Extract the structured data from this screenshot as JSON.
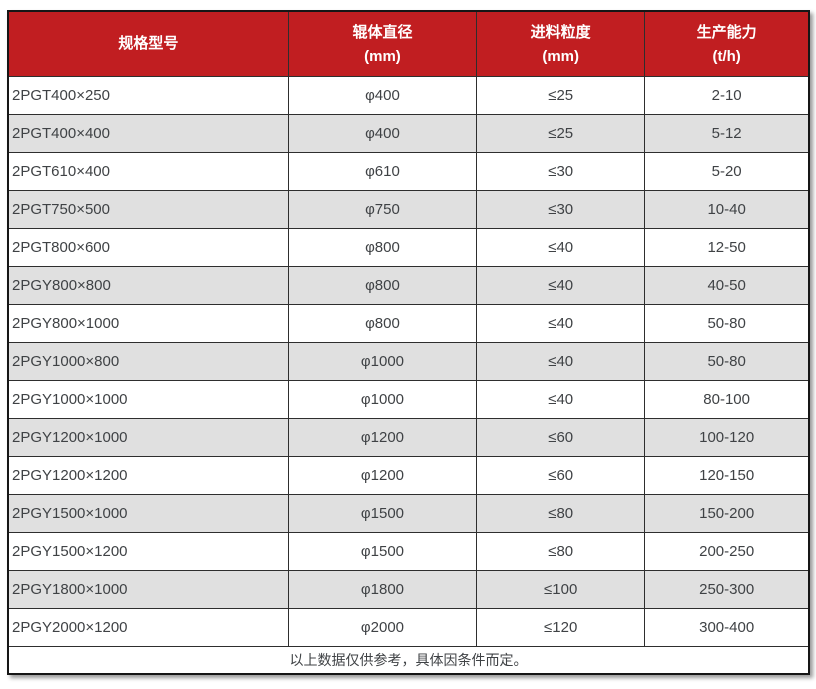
{
  "colors": {
    "header_bg": "#c11e21",
    "header_text": "#ffffff",
    "row_bg": "#ffffff",
    "row_alt_bg": "#e0e0e0",
    "cell_text": "#3f4245",
    "border_inner": "#2e2e2e",
    "border_outer": "#161616"
  },
  "chart_data": {
    "type": "table",
    "title": "",
    "columns": [
      {
        "title": "规格型号",
        "unit": ""
      },
      {
        "title": "辊体直径",
        "unit": "(mm)"
      },
      {
        "title": "进料粒度",
        "unit": "(mm)"
      },
      {
        "title": "生产能力",
        "unit": "(t/h)"
      }
    ],
    "column_widths_percent": [
      35,
      23.5,
      21,
      20.5
    ],
    "rows": [
      [
        "2PGT400×250",
        "φ400",
        "≤25",
        "2-10"
      ],
      [
        "2PGT400×400",
        "φ400",
        "≤25",
        "5-12"
      ],
      [
        "2PGT610×400",
        "φ610",
        "≤30",
        "5-20"
      ],
      [
        "2PGT750×500",
        "φ750",
        "≤30",
        "10-40"
      ],
      [
        "2PGT800×600",
        "φ800",
        "≤40",
        "12-50"
      ],
      [
        "2PGY800×800",
        "φ800",
        "≤40",
        "40-50"
      ],
      [
        "2PGY800×1000",
        "φ800",
        "≤40",
        "50-80"
      ],
      [
        "2PGY1000×800",
        "φ1000",
        "≤40",
        "50-80"
      ],
      [
        "2PGY1000×1000",
        "φ1000",
        "≤40",
        "80-100"
      ],
      [
        "2PGY1200×1000",
        "φ1200",
        "≤60",
        "100-120"
      ],
      [
        "2PGY1200×1200",
        "φ1200",
        "≤60",
        "120-150"
      ],
      [
        "2PGY1500×1000",
        "φ1500",
        "≤80",
        "150-200"
      ],
      [
        "2PGY1500×1200",
        "φ1500",
        "≤80",
        "200-250"
      ],
      [
        "2PGY1800×1000",
        "φ1800",
        "≤100",
        "250-300"
      ],
      [
        "2PGY2000×1200",
        "φ2000",
        "≤120",
        "300-400"
      ]
    ],
    "footnote": "以上数据仅供参考，具体因条件而定。"
  }
}
